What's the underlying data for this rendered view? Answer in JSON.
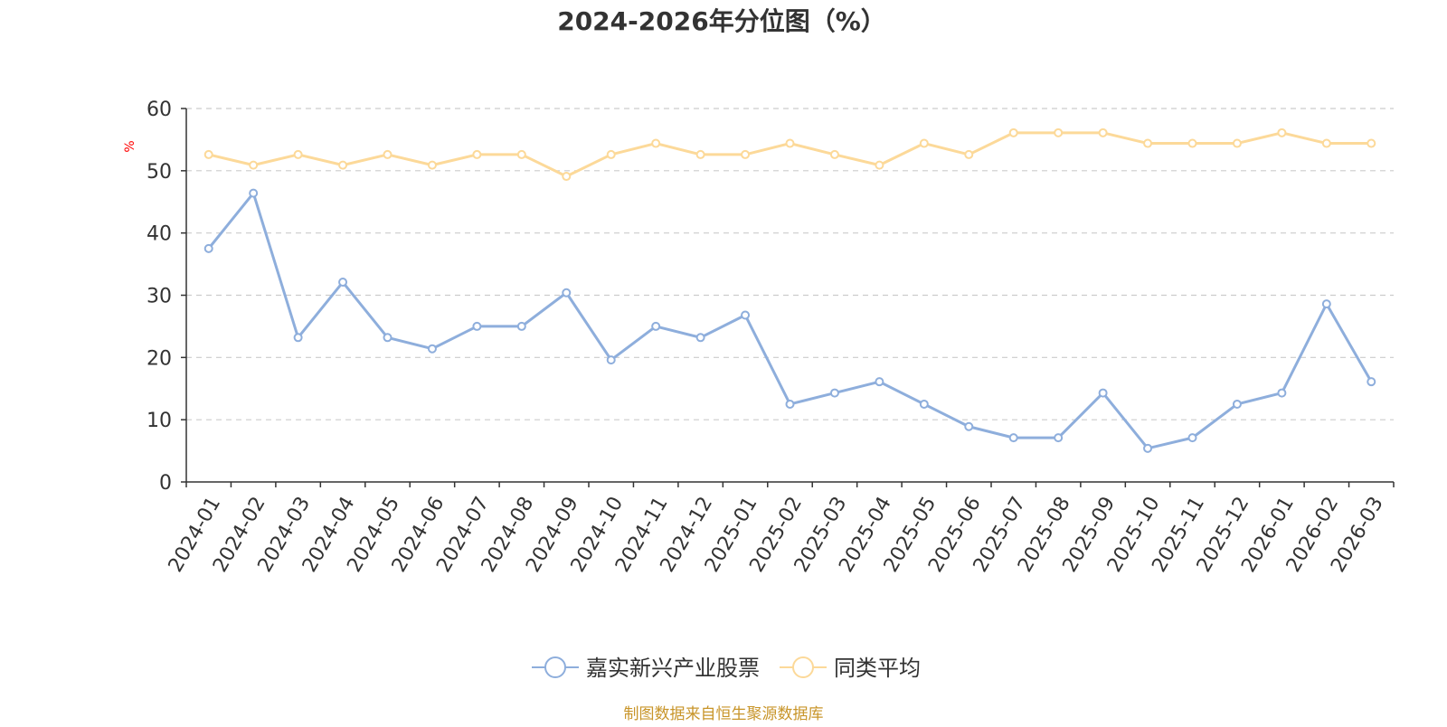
{
  "chart_data": {
    "type": "line",
    "title": "2024-2026年分位图（%）",
    "ylabel": "%",
    "ylim": [
      0,
      60
    ],
    "yticks": [
      0,
      10,
      20,
      30,
      40,
      50,
      60
    ],
    "grid": true,
    "legend_position": "bottom-center",
    "categories": [
      "2024-01",
      "2024-02",
      "2024-03",
      "2024-04",
      "2024-05",
      "2024-06",
      "2024-07",
      "2024-08",
      "2024-09",
      "2024-10",
      "2024-11",
      "2024-12",
      "2025-01",
      "2025-02",
      "2025-03",
      "2025-04",
      "2025-05",
      "2025-06",
      "2025-07",
      "2025-08",
      "2025-09",
      "2025-10",
      "2025-11",
      "2025-12",
      "2026-01",
      "2026-02",
      "2026-03"
    ],
    "series": [
      {
        "name": "嘉实新兴产业股票",
        "color": "#8eaedc",
        "values": [
          37.5,
          46.4,
          23.2,
          32.1,
          23.2,
          21.4,
          25.0,
          25.0,
          30.4,
          19.6,
          25.0,
          23.2,
          26.8,
          12.5,
          14.3,
          16.1,
          12.5,
          8.9,
          7.1,
          7.1,
          14.3,
          5.4,
          7.1,
          12.5,
          14.3,
          28.6,
          16.1
        ]
      },
      {
        "name": "同类平均",
        "color": "#fcd999",
        "values": [
          52.6,
          50.9,
          52.6,
          50.9,
          52.6,
          50.9,
          52.6,
          52.6,
          49.1,
          52.6,
          54.4,
          52.6,
          52.6,
          54.4,
          52.6,
          50.9,
          54.4,
          52.6,
          56.1,
          56.1,
          56.1,
          54.4,
          54.4,
          54.4,
          56.1,
          54.4,
          54.4
        ]
      }
    ],
    "source_note": "制图数据来自恒生聚源数据库",
    "source_color": "#c8952a",
    "ylabel_color": "#ff0000"
  }
}
